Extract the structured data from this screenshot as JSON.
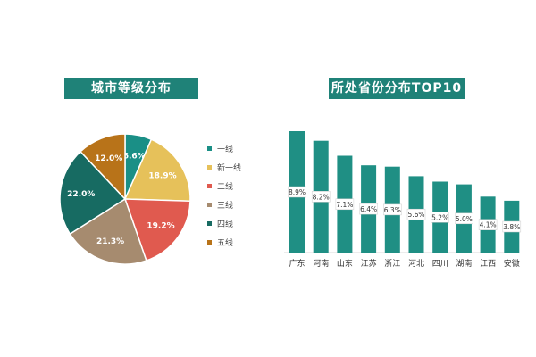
{
  "charts": {
    "pie_title": "城市等级分布",
    "bar_title": "所处省份分布TOP10"
  },
  "chart_data": [
    {
      "type": "pie",
      "title": "城市等级分布",
      "labels": [
        "一线",
        "新一线",
        "二线",
        "三线",
        "四线",
        "五线"
      ],
      "values": [
        6.6,
        18.9,
        19.2,
        21.3,
        22.0,
        12.0
      ],
      "value_labels": [
        "6.6%",
        "18.9%",
        "19.2%",
        "21.3%",
        "22.0%",
        "12.0%"
      ],
      "colors": [
        "#1a8f86",
        "#e6c15a",
        "#e05a4f",
        "#a68b6f",
        "#176b62",
        "#b87319"
      ],
      "legend": "right"
    },
    {
      "type": "bar",
      "title": "所处省份分布TOP10",
      "categories": [
        "广东",
        "河南",
        "山东",
        "江苏",
        "浙江",
        "河北",
        "四川",
        "湖南",
        "江西",
        "安徽"
      ],
      "values": [
        8.9,
        8.2,
        7.1,
        6.4,
        6.3,
        5.6,
        5.2,
        5.0,
        4.1,
        3.8
      ],
      "value_labels": [
        "8.9%",
        "8.2%",
        "7.1%",
        "6.4%",
        "6.3%",
        "5.6%",
        "5.2%",
        "5.0%",
        "4.1%",
        "3.8%"
      ],
      "color": "#1f8f84"
    }
  ]
}
